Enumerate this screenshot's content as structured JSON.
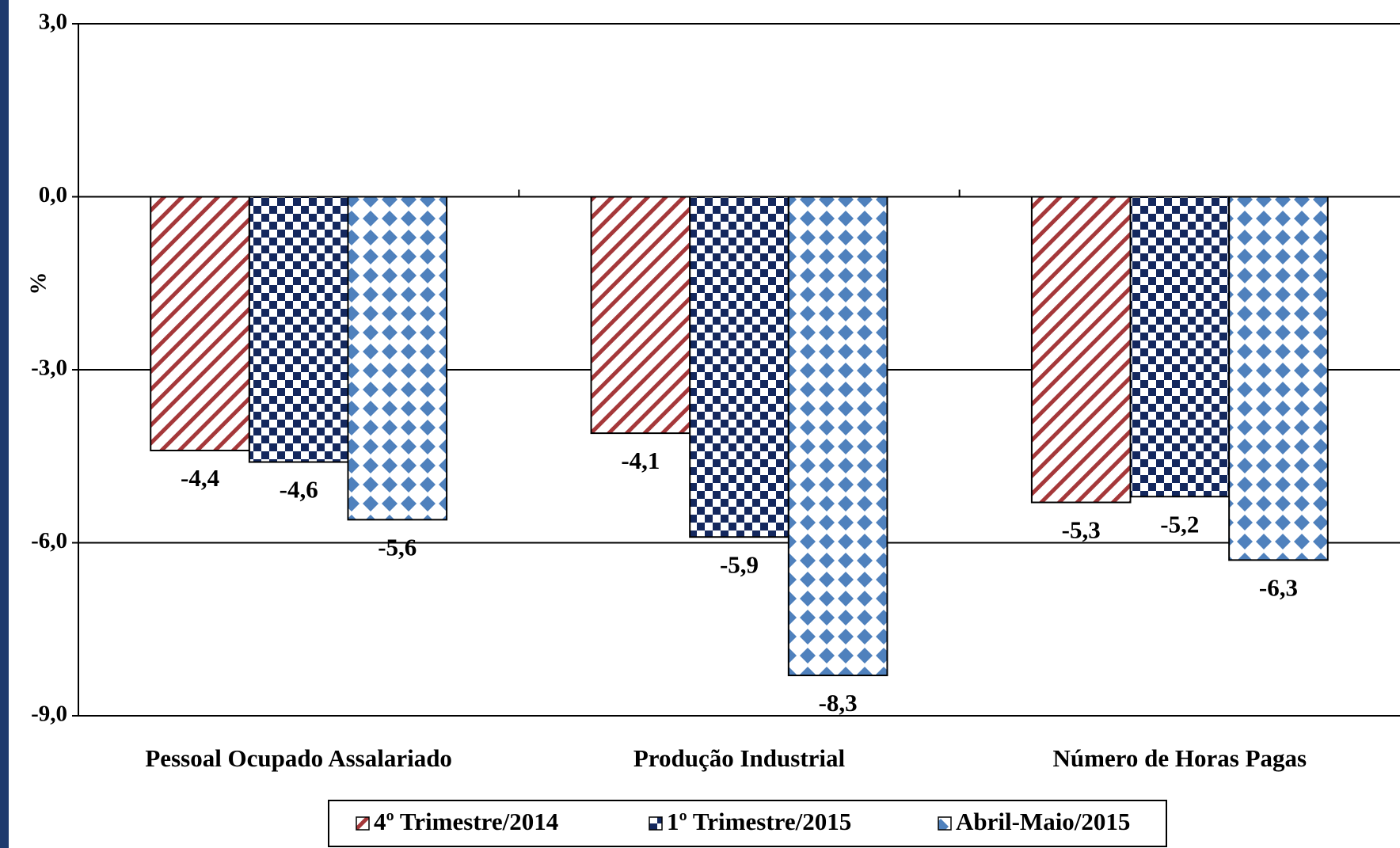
{
  "chart_data": {
    "type": "bar",
    "y_label": "%",
    "categories": [
      "Pessoal Ocupado Assalariado",
      "Produção Industrial",
      "Número de Horas Pagas"
    ],
    "series": [
      {
        "name": "4º Trimestre/2014",
        "color": "#a5383a",
        "pattern": "diagonal",
        "values": [
          -4.4,
          -4.1,
          -5.3
        ],
        "value_labels": [
          "-4,4",
          "-4,1",
          "-5,3"
        ]
      },
      {
        "name": "1º Trimestre/2015",
        "color": "#14285e",
        "pattern": "checker",
        "values": [
          -4.6,
          -5.9,
          -5.2
        ],
        "value_labels": [
          "-4,6",
          "-5,9",
          "-5,2"
        ]
      },
      {
        "name": "Abril-Maio/2015",
        "color": "#4f81bd",
        "pattern": "diamond",
        "values": [
          -5.6,
          -8.3,
          -6.3
        ],
        "value_labels": [
          "-5,6",
          "-8,3",
          "-6,3"
        ]
      }
    ],
    "ylim": [
      -9,
      3
    ],
    "yticks": [
      {
        "value": -9,
        "label": "-9,0"
      },
      {
        "value": -6,
        "label": "-6,0"
      },
      {
        "value": -3,
        "label": "-3,0"
      },
      {
        "value": 0,
        "label": "0,0"
      },
      {
        "value": 3,
        "label": "3,0"
      }
    ],
    "grid": true,
    "legend": "bottom"
  }
}
